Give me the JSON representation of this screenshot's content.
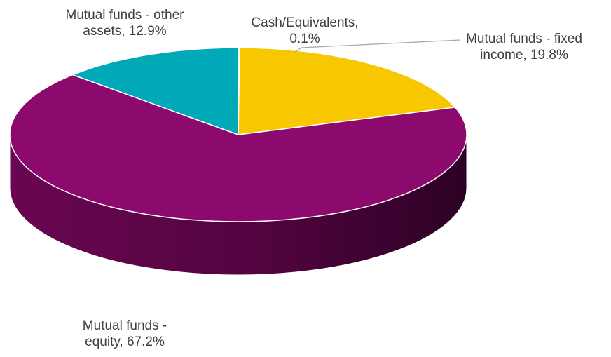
{
  "chart_data": {
    "type": "pie",
    "title": "",
    "slices": [
      {
        "name": "Cash/Equivalents",
        "value": 0.1,
        "label_lines": [
          "Cash/Equivalents,",
          "0.1%"
        ],
        "color": "#A6A6A6"
      },
      {
        "name": "Mutual funds - fixed income",
        "value": 19.8,
        "label_lines": [
          "Mutual funds - fixed",
          "income, 19.8%"
        ],
        "color": "#F7C800"
      },
      {
        "name": "Mutual funds - equity",
        "value": 67.2,
        "label_lines": [
          "Mutual funds -",
          "equity, 67.2%"
        ],
        "color": "#8C0A6E"
      },
      {
        "name": "Mutual funds - other assets",
        "value": 12.9,
        "label_lines": [
          "Mutual funds - other",
          "assets, 12.9%"
        ],
        "color": "#00A9B8"
      }
    ],
    "style": "3d",
    "legend": "none",
    "labels": "outside with leader lines"
  }
}
